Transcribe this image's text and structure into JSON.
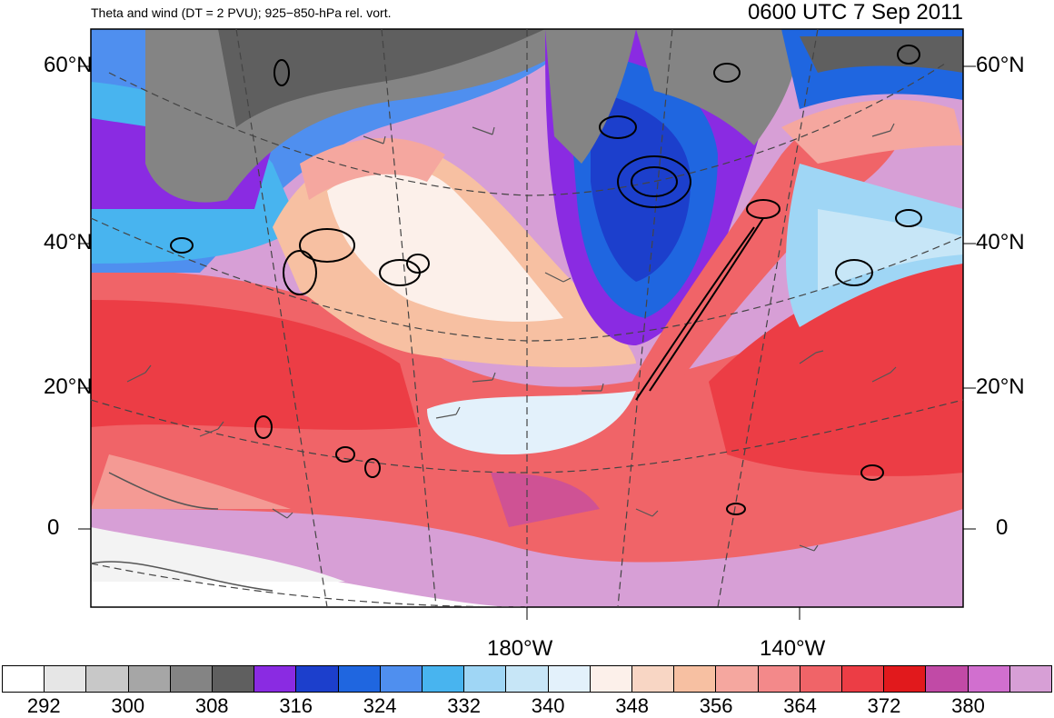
{
  "header": {
    "left_title": "Theta and wind (DT = 2 PVU); 925−850-hPa rel. vort.",
    "right_title": "0600 UTC 7 Sep 2011"
  },
  "map": {
    "lat_labels": [
      "60°N",
      "40°N",
      "20°N",
      "0"
    ],
    "lon_labels": [
      "180°W",
      "140°W"
    ]
  },
  "colorbar": {
    "colors": [
      "#ffffff",
      "#e6e6e6",
      "#c8c8c8",
      "#a6a6a6",
      "#848484",
      "#5f5f5f",
      "#8a2be2",
      "#1c3fcc",
      "#1f66e0",
      "#4f8fef",
      "#48b4ef",
      "#9fd6f5",
      "#c7e6f7",
      "#e3f1fb",
      "#fcf0ea",
      "#f8d6c4",
      "#f7c0a2",
      "#f5a79f",
      "#f3898a",
      "#f06468",
      "#ec3d45",
      "#e1191c",
      "#c14aa6",
      "#d16fcf",
      "#d79fd6"
    ],
    "labels": [
      "292",
      "300",
      "308",
      "316",
      "324",
      "332",
      "340",
      "348",
      "356",
      "364",
      "372",
      "380"
    ]
  }
}
